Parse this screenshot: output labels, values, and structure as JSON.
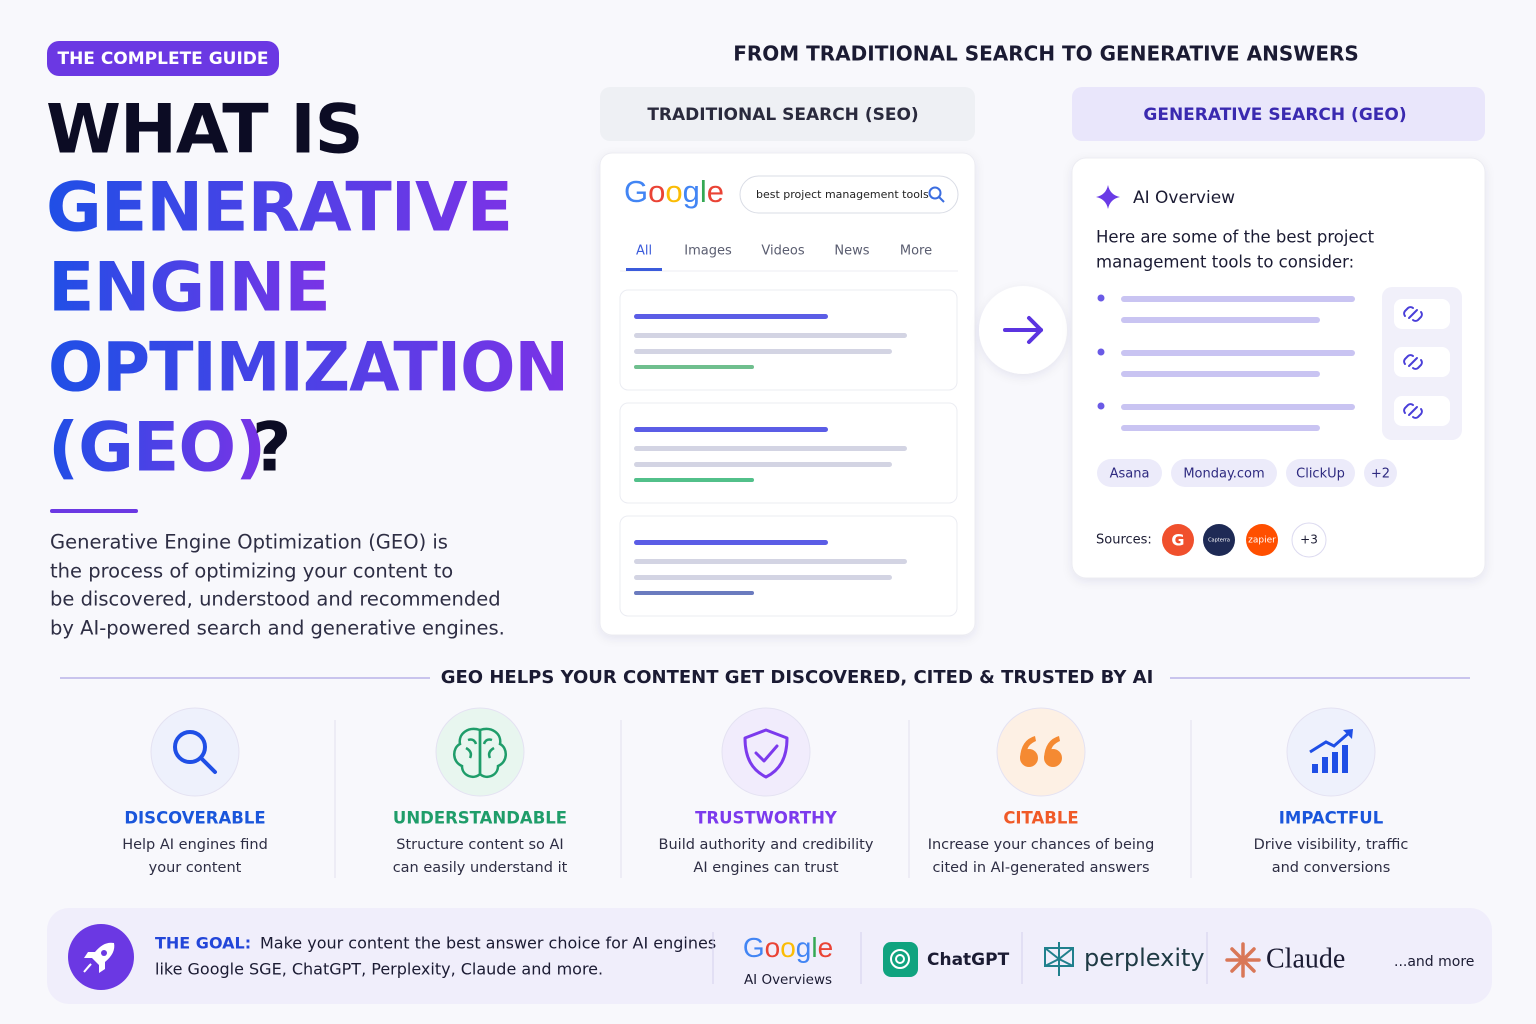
{
  "badge": "THE COMPLETE GUIDE",
  "title": {
    "intro": "WHAT IS",
    "highlight": [
      "GENERATIVE",
      "ENGINE",
      "OPTIMIZATION",
      "(GEO)"
    ],
    "end": "?"
  },
  "description": [
    "Generative Engine Optimization (GEO) is",
    "the process of optimizing your content to",
    "be discovered, understood and recommended",
    "by AI-powered search and generative engines."
  ],
  "comparison": {
    "heading": "FROM TRADITIONAL SEARCH TO GENERATIVE ANSWERS",
    "traditional": {
      "label": "TRADITIONAL SEARCH (SEO)",
      "logo": "Google",
      "query": "best project management tools",
      "tabs": [
        "All",
        "Images",
        "Videos",
        "News",
        "More"
      ]
    },
    "generative": {
      "label": "GENERATIVE SEARCH (GEO)",
      "overview_title": "AI Overview",
      "intro": [
        "Here are some of the best project",
        "management tools to consider:"
      ],
      "tools": [
        "Asana",
        "Monday.com",
        "ClickUp",
        "+2"
      ],
      "sources_label": "Sources:",
      "sources": [
        "G",
        "Capterra",
        "zapier",
        "+3"
      ]
    }
  },
  "benefits": {
    "heading": "GEO HELPS YOUR CONTENT GET DISCOVERED, CITED & TRUSTED BY AI",
    "items": [
      {
        "title": "DISCOVERABLE",
        "text": [
          "Help AI engines find",
          "your content"
        ]
      },
      {
        "title": "UNDERSTANDABLE",
        "text": [
          "Structure content so AI",
          "can easily understand it"
        ]
      },
      {
        "title": "TRUSTWORTHY",
        "text": [
          "Build authority and credibility",
          "AI engines can trust"
        ]
      },
      {
        "title": "CITABLE",
        "text": [
          "Increase your chances of being",
          "cited in AI-generated answers"
        ]
      },
      {
        "title": "IMPACTFUL",
        "text": [
          "Drive visibility, traffic",
          "and conversions"
        ]
      }
    ]
  },
  "goal": {
    "label": "THE GOAL:",
    "text": [
      "Make your content the best answer choice for AI engines",
      "like Google SGE, ChatGPT, Perplexity, Claude and more."
    ],
    "engines": {
      "google": "Google",
      "google_sub": "AI Overviews",
      "chatgpt": "ChatGPT",
      "perplexity": "perplexity",
      "claude": "Claude"
    },
    "more": "...and more"
  }
}
